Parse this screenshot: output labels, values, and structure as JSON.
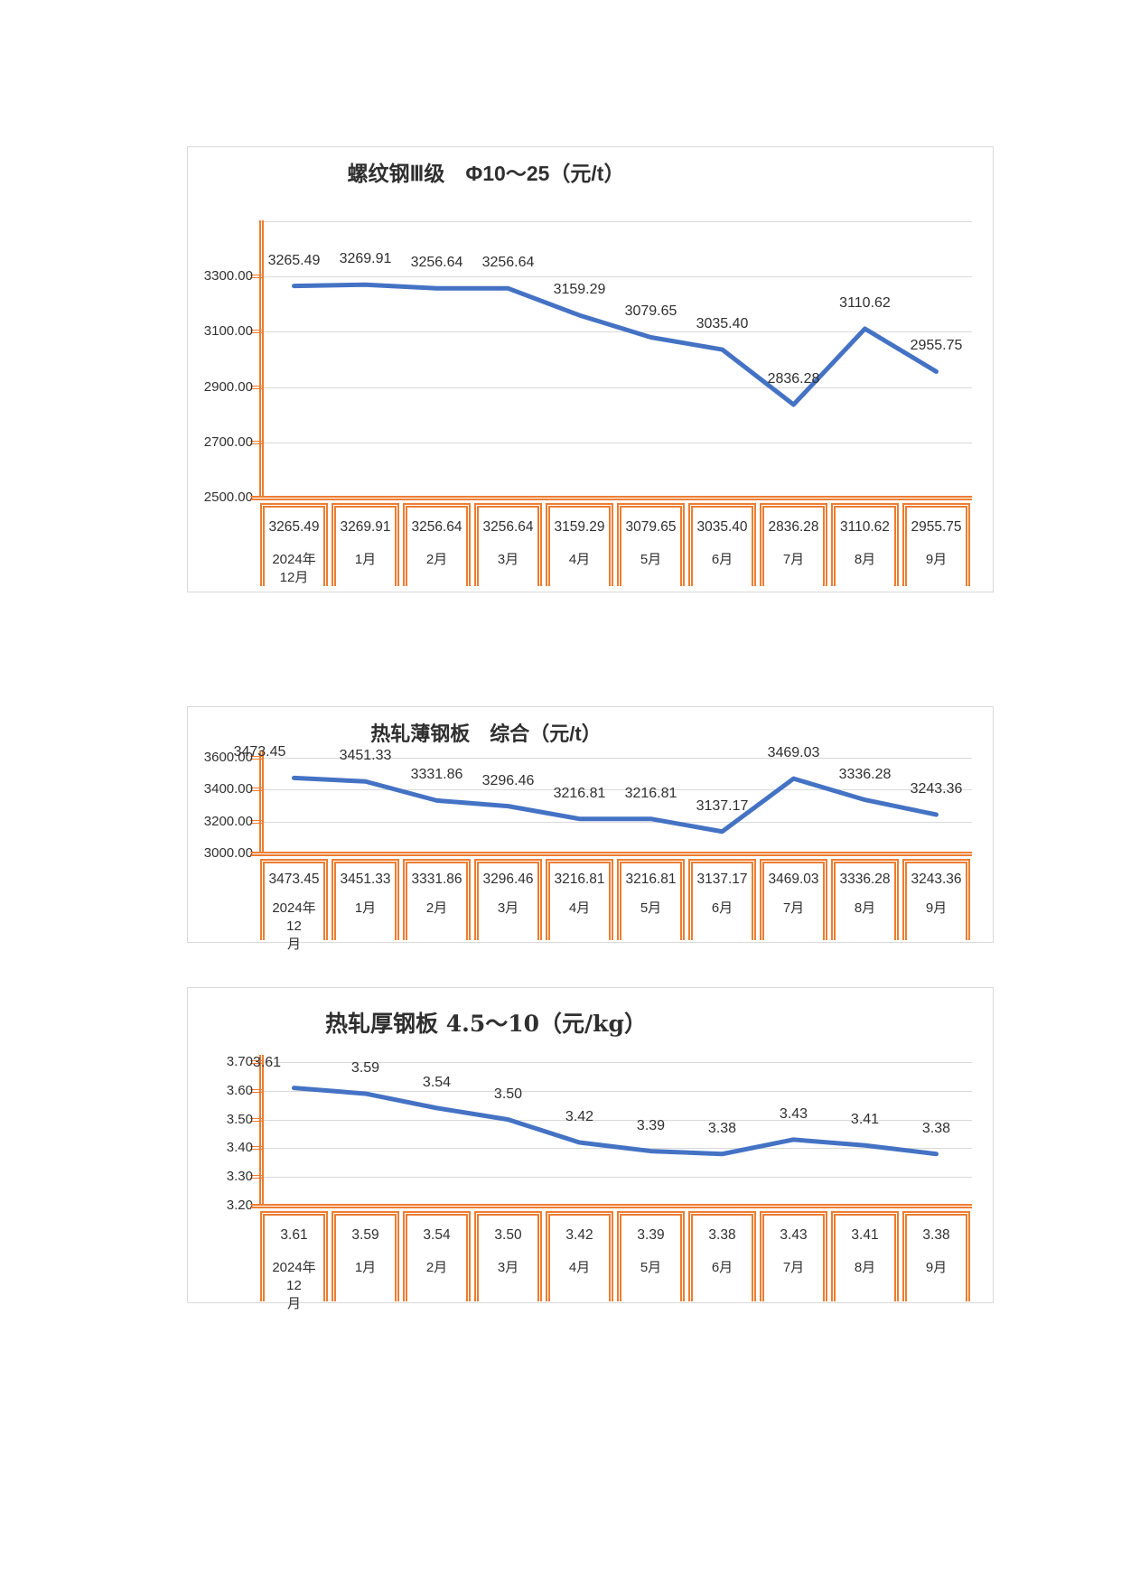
{
  "colors": {
    "line": "#4472C4",
    "table_border": "#ED7D31",
    "gridline": "#D9D9D9",
    "frame": "#D9D9D9",
    "text": "#303030"
  },
  "chart_data": [
    {
      "type": "line",
      "title": "螺纹钢Ⅲ级　Φ10～25（元/t）",
      "ylabel": "元/t",
      "categories": [
        "2024年12月",
        "1月",
        "2月",
        "3月",
        "4月",
        "5月",
        "6月",
        "7月",
        "8月",
        "9月"
      ],
      "category_labels": [
        "2024年\n12月",
        "1月",
        "2月",
        "3月",
        "4月",
        "5月",
        "6月",
        "7月",
        "8月",
        "9月"
      ],
      "values": [
        3265.49,
        3269.91,
        3256.64,
        3256.64,
        3159.29,
        3079.65,
        3035.4,
        2836.28,
        3110.62,
        2955.75
      ],
      "value_labels": [
        "3265.49",
        "3269.91",
        "3256.64",
        "3256.64",
        "3159.29",
        "3079.65",
        "3035.40",
        "2836.28",
        "3110.62",
        "2955.75"
      ],
      "y_ticks": [
        "3300.00",
        "3100.00",
        "2900.00",
        "2700.00",
        "2500.00"
      ],
      "ylim": [
        2500,
        3300
      ],
      "grid": true,
      "legend": "none"
    },
    {
      "type": "line",
      "title": "热轧薄钢板　综合（元/t）",
      "ylabel": "元/t",
      "categories": [
        "2024年12月",
        "1月",
        "2月",
        "3月",
        "4月",
        "5月",
        "6月",
        "7月",
        "8月",
        "9月"
      ],
      "category_labels": [
        "2024年12\n月",
        "1月",
        "2月",
        "3月",
        "4月",
        "5月",
        "6月",
        "7月",
        "8月",
        "9月"
      ],
      "values": [
        3473.45,
        3451.33,
        3331.86,
        3296.46,
        3216.81,
        3216.81,
        3137.17,
        3469.03,
        3336.28,
        3243.36
      ],
      "value_labels": [
        "3473.45",
        "3451.33",
        "3331.86",
        "3296.46",
        "3216.81",
        "3216.81",
        "3137.17",
        "3469.03",
        "3336.28",
        "3243.36"
      ],
      "y_ticks": [
        "3600.00",
        "3400.00",
        "3200.00",
        "3000.00"
      ],
      "ylim": [
        3000,
        3600
      ],
      "grid": true,
      "legend": "none"
    },
    {
      "type": "line",
      "title": "热轧厚钢板 4.5～10（元/kg）",
      "ylabel": "元/kg",
      "categories": [
        "2024年12月",
        "1月",
        "2月",
        "3月",
        "4月",
        "5月",
        "6月",
        "7月",
        "8月",
        "9月"
      ],
      "category_labels": [
        "2024年12\n月",
        "1月",
        "2月",
        "3月",
        "4月",
        "5月",
        "6月",
        "7月",
        "8月",
        "9月"
      ],
      "values": [
        3.61,
        3.59,
        3.54,
        3.5,
        3.42,
        3.39,
        3.38,
        3.43,
        3.41,
        3.38
      ],
      "value_labels": [
        "3.61",
        "3.59",
        "3.54",
        "3.50",
        "3.42",
        "3.39",
        "3.38",
        "3.43",
        "3.41",
        "3.38"
      ],
      "y_ticks": [
        "3.70",
        "3.60",
        "3.50",
        "3.40",
        "3.30",
        "3.20"
      ],
      "ylim": [
        3.2,
        3.7
      ],
      "grid": true,
      "legend": "none"
    }
  ]
}
